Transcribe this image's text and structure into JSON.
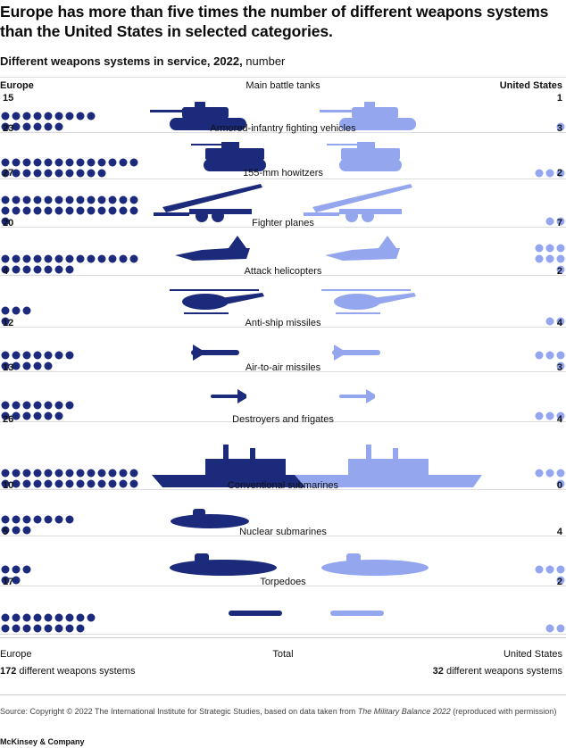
{
  "title": "Europe has more than five times the number of different weapons systems than the United States in selected categories.",
  "subtitle_bold": "Different weapons systems in service, 2022,",
  "subtitle_rest": " number",
  "header_left": "Europe",
  "header_right": "United States",
  "colors": {
    "europe": "#1b2a7a",
    "us": "#93a6ee"
  },
  "chart_data": {
    "type": "bar",
    "title": "Different weapons systems in service, 2022, number",
    "categories": [
      "Main battle tanks",
      "Armored-infantry fighting vehicles",
      "155-mm howitzers",
      "Fighter planes",
      "Attack helicopters",
      "Anti-ship missiles",
      "Air-to-air missiles",
      "Destroyers and frigates",
      "Conventional submarines",
      "Nuclear submarines",
      "Torpedoes"
    ],
    "series": [
      {
        "name": "Europe",
        "values": [
          15,
          23,
          27,
          20,
          4,
          12,
          13,
          26,
          10,
          5,
          17
        ]
      },
      {
        "name": "United States",
        "values": [
          1,
          3,
          2,
          7,
          2,
          4,
          3,
          4,
          0,
          4,
          2
        ]
      }
    ],
    "icons": [
      "tank-icon",
      "ifv-icon",
      "howitzer-icon",
      "fighter-plane-icon",
      "helicopter-icon",
      "anti-ship-missile-icon",
      "air-to-air-missile-icon",
      "frigate-icon",
      "submarine-icon",
      "nuclear-submarine-icon",
      "torpedo-icon"
    ]
  },
  "footer": {
    "europe_label": "Europe",
    "total_label": "Total",
    "us_label": "United States",
    "europe_total": "172",
    "us_total": "32",
    "systems_text": " different weapons systems"
  },
  "source_prefix": "Source: Copyright © 2022 The International Institute for Strategic Studies, based on data taken from ",
  "source_italic": "The Military Balance 2022",
  "source_suffix": " (reproduced with permission)",
  "brand": "McKinsey & Company"
}
